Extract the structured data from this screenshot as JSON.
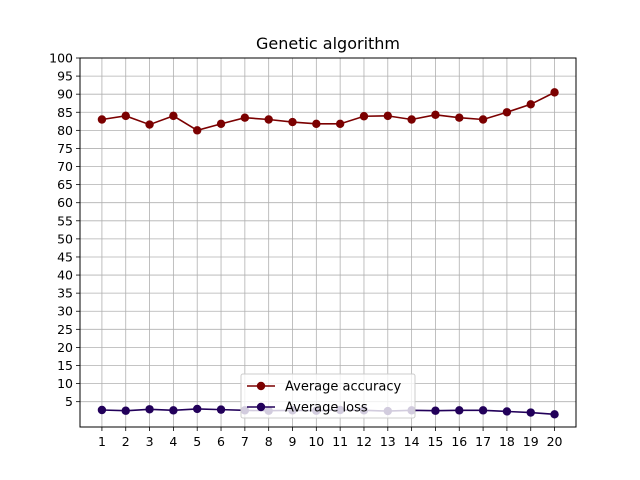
{
  "chart_data": {
    "type": "line",
    "title": "Genetic algorithm",
    "xlabel": "",
    "ylabel": "",
    "x": [
      1,
      2,
      3,
      4,
      5,
      6,
      7,
      8,
      9,
      10,
      11,
      12,
      13,
      14,
      15,
      16,
      17,
      18,
      19,
      20
    ],
    "xticks": [
      "1",
      "2",
      "3",
      "4",
      "5",
      "6",
      "7",
      "8",
      "9",
      "10",
      "11",
      "12",
      "13",
      "14",
      "15",
      "16",
      "17",
      "18",
      "19",
      "20"
    ],
    "yticks": [
      "5",
      "10",
      "15",
      "20",
      "25",
      "30",
      "35",
      "40",
      "45",
      "50",
      "55",
      "60",
      "65",
      "70",
      "75",
      "80",
      "85",
      "90",
      "95",
      "100"
    ],
    "ylim": [
      -2,
      100
    ],
    "grid": true,
    "legend_position": "lower center",
    "series": [
      {
        "name": "Average accuracy",
        "color": "#7b0000",
        "values": [
          83.0,
          84.0,
          81.6,
          84.0,
          80.0,
          81.8,
          83.5,
          83.0,
          82.3,
          81.8,
          81.8,
          83.9,
          84.0,
          83.0,
          84.3,
          83.5,
          83.0,
          85.0,
          87.2,
          90.5
        ]
      },
      {
        "name": "Average loss",
        "color": "#22005a",
        "values": [
          2.7,
          2.5,
          2.9,
          2.6,
          3.0,
          2.8,
          2.6,
          2.5,
          2.6,
          2.5,
          2.7,
          2.6,
          2.4,
          2.6,
          2.5,
          2.6,
          2.6,
          2.3,
          2.0,
          1.5
        ]
      }
    ]
  }
}
